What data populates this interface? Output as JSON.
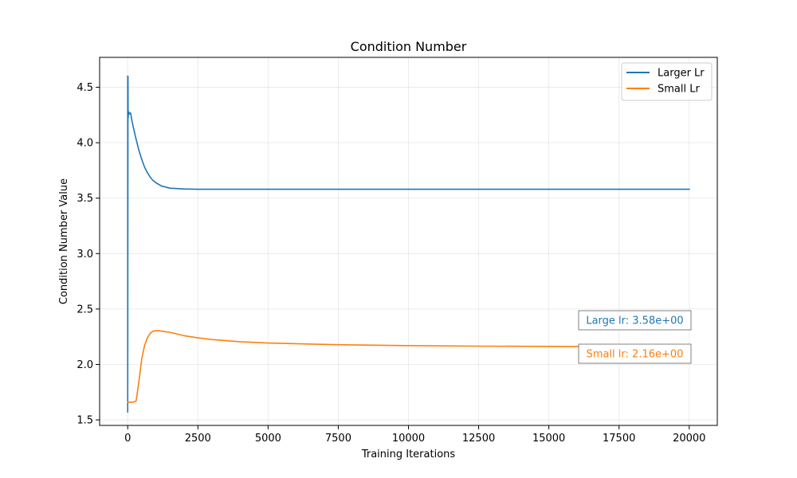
{
  "chart_data": {
    "type": "line",
    "title": "Condition Number",
    "xlabel": "Training Iterations",
    "ylabel": "Condition Number Value",
    "xlim": [
      -1000,
      21000
    ],
    "ylim": [
      1.45,
      4.77
    ],
    "xticks": [
      0,
      2500,
      5000,
      7500,
      10000,
      12500,
      15000,
      17500,
      20000
    ],
    "yticks": [
      1.5,
      2.0,
      2.5,
      3.0,
      3.5,
      4.0,
      4.5
    ],
    "xtick_labels": [
      "0",
      "2500",
      "5000",
      "7500",
      "10000",
      "12500",
      "15000",
      "17500",
      "20000"
    ],
    "ytick_labels": [
      "1.5",
      "2.0",
      "2.5",
      "3.0",
      "3.5",
      "4.0",
      "4.5"
    ],
    "grid": true,
    "legend_position": "top-right",
    "series": [
      {
        "name": "Larger Lr",
        "color": "#1f77b4",
        "x": [
          0,
          0,
          10,
          15,
          30,
          60,
          100,
          150,
          200,
          300,
          400,
          500,
          600,
          700,
          800,
          900,
          1000,
          1200,
          1500,
          2000,
          2500,
          3000,
          5000,
          10000,
          15000,
          20000
        ],
        "y": [
          4.6,
          1.57,
          4.6,
          4.22,
          4.28,
          4.26,
          4.27,
          4.2,
          4.14,
          4.03,
          3.93,
          3.85,
          3.78,
          3.73,
          3.69,
          3.66,
          3.64,
          3.61,
          3.59,
          3.583,
          3.58,
          3.58,
          3.58,
          3.58,
          3.58,
          3.58
        ]
      },
      {
        "name": "Small Lr",
        "color": "#ff7f0e",
        "x": [
          0,
          100,
          200,
          300,
          400,
          500,
          600,
          700,
          800,
          900,
          1000,
          1100,
          1200,
          1500,
          2000,
          2500,
          3000,
          4000,
          5000,
          7500,
          10000,
          12500,
          15000,
          17500,
          20000
        ],
        "y": [
          1.66,
          1.66,
          1.66,
          1.67,
          1.85,
          2.05,
          2.17,
          2.24,
          2.28,
          2.3,
          2.305,
          2.305,
          2.3,
          2.29,
          2.26,
          2.24,
          2.225,
          2.205,
          2.193,
          2.178,
          2.17,
          2.165,
          2.163,
          2.161,
          2.16
        ]
      }
    ],
    "annotations": [
      {
        "text": "Large lr: 3.58e+00",
        "color": "#1f77b4"
      },
      {
        "text": "Small lr: 2.16e+00",
        "color": "#ff7f0e"
      }
    ]
  }
}
